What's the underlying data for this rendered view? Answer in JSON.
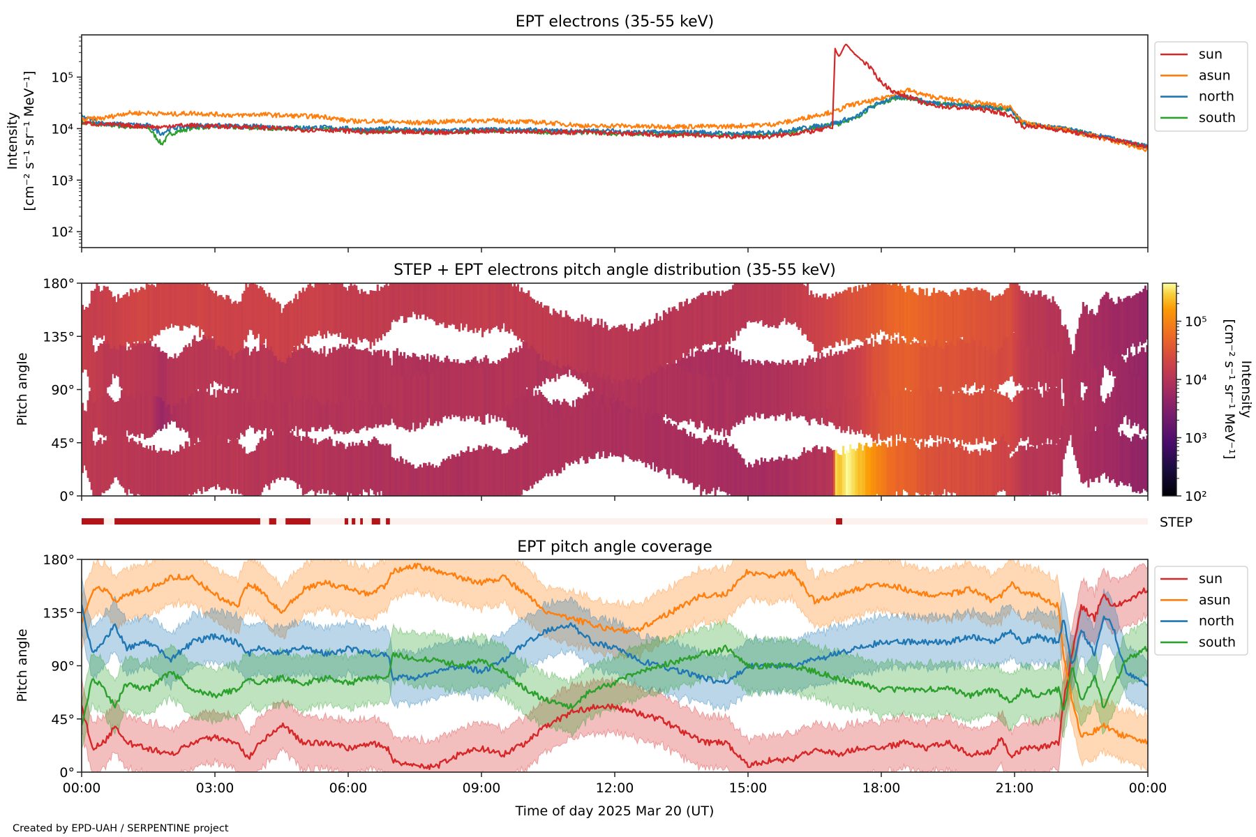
{
  "footer": "Created by EPD-UAH / SERPENTINE project",
  "xaxis": {
    "label": "Time of day 2025 Mar 20 (UT)",
    "range_hours": [
      0,
      24
    ],
    "tick_hours": [
      0,
      3,
      6,
      9,
      12,
      15,
      18,
      21,
      24
    ],
    "tick_labels": [
      "00:00",
      "03:00",
      "06:00",
      "09:00",
      "12:00",
      "15:00",
      "18:00",
      "21:00",
      "00:00"
    ]
  },
  "colors": {
    "sun": "#d62728",
    "asun": "#ff7f0e",
    "north": "#1f77b4",
    "south": "#2ca02c",
    "step_on": "#b2141a",
    "step_off": "#fdf1ed"
  },
  "chart_data": [
    {
      "id": "intensity",
      "type": "line",
      "title": "EPT electrons (35-55 keV)",
      "ylabel_line1": "Intensity",
      "ylabel_line2": "[cm⁻² s⁻¹ sr⁻¹ MeV⁻¹]",
      "yscale": "log",
      "ylim": [
        49,
        660000
      ],
      "ytick_values": [
        100,
        1000,
        10000,
        100000
      ],
      "ytick_labels": [
        "10²",
        "10³",
        "10⁴",
        "10⁵"
      ],
      "legend": {
        "placement": "outside-right-top",
        "entries": [
          "sun",
          "asun",
          "north",
          "south"
        ]
      },
      "x_hours": [
        0,
        0.5,
        1,
        1.5,
        1.8,
        2,
        2.5,
        3,
        3.5,
        4,
        4.5,
        5,
        5.5,
        6,
        6.5,
        7,
        7.5,
        8,
        8.5,
        9,
        9.5,
        10,
        10.5,
        11,
        11.5,
        12,
        12.5,
        13,
        13.5,
        14,
        14.5,
        15,
        15.5,
        16,
        16.5,
        16.9,
        16.96,
        17.05,
        17.1,
        17.2,
        17.4,
        17.7,
        18,
        18.3,
        18.6,
        19,
        19.5,
        20,
        20.5,
        20.9,
        21.2,
        21.5,
        22,
        22.5,
        23,
        23.5,
        24
      ],
      "series": [
        {
          "name": "sun",
          "values": [
            13000,
            12000,
            11500,
            11000,
            10500,
            11500,
            11500,
            11000,
            11000,
            10500,
            10000,
            9500,
            9500,
            9000,
            8500,
            8500,
            8500,
            8500,
            8500,
            9000,
            9000,
            9000,
            8500,
            8500,
            8500,
            8000,
            8000,
            7500,
            7500,
            7500,
            7000,
            7000,
            7000,
            8000,
            9000,
            10500,
            350000,
            250000,
            300000,
            440000,
            280000,
            170000,
            80000,
            50000,
            42000,
            30000,
            26000,
            25000,
            22000,
            18000,
            11000,
            11000,
            9500,
            8000,
            6500,
            5500,
            4500
          ]
        },
        {
          "name": "asun",
          "values": [
            15000,
            16000,
            20000,
            20000,
            19500,
            19000,
            20000,
            19000,
            18000,
            19000,
            18000,
            17500,
            17000,
            14000,
            14000,
            13500,
            13000,
            13500,
            14000,
            14500,
            14000,
            13500,
            13000,
            12000,
            11000,
            11500,
            11000,
            11000,
            11000,
            11000,
            11000,
            11500,
            12000,
            14000,
            18000,
            21000,
            21500,
            23000,
            24000,
            27000,
            30000,
            33000,
            38000,
            48000,
            56000,
            44000,
            37000,
            33000,
            29000,
            26000,
            13000,
            11500,
            10000,
            8000,
            6500,
            5000,
            3800
          ]
        },
        {
          "name": "north",
          "values": [
            17000,
            12500,
            12000,
            11500,
            8000,
            10000,
            11500,
            11500,
            11000,
            11000,
            10500,
            10500,
            10500,
            10000,
            9500,
            10000,
            9500,
            9000,
            9500,
            9500,
            9500,
            9500,
            9000,
            9000,
            9000,
            9000,
            8500,
            8500,
            8500,
            8500,
            8000,
            8000,
            8500,
            9500,
            11000,
            12500,
            13000,
            13000,
            14000,
            15000,
            16000,
            24000,
            33000,
            40000,
            42000,
            33000,
            30000,
            28000,
            26000,
            24000,
            13000,
            11500,
            10500,
            8500,
            7000,
            5500,
            4500
          ]
        },
        {
          "name": "south",
          "values": [
            13000,
            12000,
            11000,
            10500,
            5000,
            8000,
            10500,
            11000,
            10500,
            10500,
            10000,
            10000,
            9500,
            9500,
            9000,
            9000,
            9000,
            8500,
            9000,
            9000,
            9000,
            9000,
            8500,
            8500,
            8500,
            8000,
            8000,
            8000,
            8000,
            8000,
            7500,
            7500,
            8000,
            9000,
            10500,
            12000,
            12500,
            12500,
            13500,
            14500,
            15500,
            24000,
            32000,
            39000,
            40000,
            32000,
            29500,
            27500,
            25500,
            23500,
            12500,
            11500,
            10000,
            8500,
            6800,
            5300,
            4300
          ]
        }
      ]
    },
    {
      "id": "pad",
      "type": "heatmap",
      "title": "STEP + EPT electrons pitch angle distribution (35-55 keV)",
      "ylabel": "Pitch angle",
      "ylim": [
        0,
        180
      ],
      "ytick_values": [
        0,
        45,
        90,
        135,
        180
      ],
      "ytick_labels": [
        "0°",
        "45°",
        "90°",
        "135°",
        "180°"
      ],
      "description": "Each EPT telescope (sun, asun, north, south) fills its pitch-angle coverage band (see coverage panel) coloured by that telescope's intensity; STEP fills 0-180° only in low-angle band when active",
      "colorbar": {
        "colormap": "inferno",
        "scale": "log",
        "range": [
          100,
          450000
        ],
        "tick_values": [
          100,
          1000,
          10000,
          100000
        ],
        "tick_labels": [
          "10²",
          "10³",
          "10⁴",
          "10⁵"
        ],
        "label_line1": "Intensity",
        "label_line2": "[cm⁻² s⁻¹ sr⁻¹ MeV⁻¹]"
      }
    },
    {
      "id": "step",
      "type": "table",
      "label": "STEP",
      "description": "STEP data availability (dark segments = available)",
      "segments_hours": [
        [
          0.0,
          0.5
        ],
        [
          0.74,
          4.02
        ],
        [
          4.22,
          4.38
        ],
        [
          4.59,
          5.15
        ],
        [
          5.92,
          6.0
        ],
        [
          6.08,
          6.16
        ],
        [
          6.27,
          6.33
        ],
        [
          6.53,
          6.72
        ],
        [
          6.85,
          6.94
        ],
        [
          16.98,
          17.12
        ]
      ]
    },
    {
      "id": "coverage",
      "type": "area",
      "title": "EPT pitch angle coverage",
      "ylabel": "Pitch angle",
      "ylim": [
        0,
        180
      ],
      "ytick_values": [
        0,
        45,
        90,
        135,
        180
      ],
      "ytick_labels": [
        "0°",
        "45°",
        "90°",
        "135°",
        "180°"
      ],
      "legend": {
        "placement": "outside-right-top",
        "entries": [
          "sun",
          "asun",
          "north",
          "south"
        ]
      },
      "band_halfwidth_deg": 22,
      "x_hours": [
        0,
        0.25,
        0.5,
        0.75,
        1,
        1.5,
        2,
        2.5,
        3,
        3.5,
        3.75,
        4,
        4.5,
        5,
        5.5,
        6,
        6.5,
        6.9,
        7,
        7.5,
        8,
        8.5,
        9,
        9.5,
        10,
        10.5,
        11,
        11.5,
        12,
        12.5,
        13,
        13.5,
        14,
        14.5,
        15,
        15.5,
        16,
        16.5,
        17,
        17.5,
        18,
        18.5,
        19,
        19.5,
        20,
        20.5,
        20.7,
        20.9,
        21.2,
        21.5,
        22,
        22.1,
        22.3,
        22.5,
        22.8,
        23,
        23.2,
        23.5,
        24
      ],
      "series": [
        {
          "name": "sun",
          "values": [
            55,
            20,
            25,
            38,
            25,
            20,
            15,
            25,
            30,
            25,
            12,
            25,
            40,
            25,
            25,
            20,
            25,
            20,
            10,
            5,
            5,
            15,
            20,
            15,
            25,
            40,
            50,
            55,
            55,
            50,
            45,
            35,
            25,
            25,
            5,
            10,
            10,
            20,
            15,
            20,
            20,
            25,
            20,
            25,
            15,
            18,
            30,
            12,
            20,
            20,
            25,
            60,
            100,
            140,
            130,
            150,
            140,
            145,
            155
          ]
        },
        {
          "name": "asun",
          "values": [
            125,
            155,
            155,
            145,
            150,
            155,
            165,
            165,
            150,
            140,
            160,
            155,
            135,
            155,
            160,
            155,
            150,
            160,
            170,
            175,
            170,
            165,
            160,
            165,
            150,
            135,
            130,
            125,
            120,
            120,
            130,
            140,
            150,
            150,
            170,
            165,
            170,
            145,
            150,
            155,
            160,
            155,
            150,
            150,
            155,
            145,
            150,
            160,
            150,
            150,
            140,
            100,
            60,
            30,
            35,
            40,
            35,
            30,
            25
          ]
        },
        {
          "name": "north",
          "values": [
            140,
            100,
            110,
            125,
            105,
            110,
            95,
            110,
            115,
            110,
            100,
            105,
            100,
            105,
            100,
            105,
            100,
            100,
            80,
            80,
            85,
            90,
            85,
            95,
            110,
            120,
            125,
            110,
            105,
            95,
            90,
            85,
            80,
            75,
            90,
            90,
            90,
            95,
            100,
            105,
            110,
            110,
            110,
            110,
            115,
            110,
            115,
            120,
            110,
            115,
            110,
            130,
            90,
            120,
            100,
            130,
            125,
            85,
            75
          ]
        },
        {
          "name": "south",
          "values": [
            40,
            80,
            70,
            55,
            75,
            70,
            85,
            70,
            65,
            70,
            80,
            75,
            80,
            75,
            80,
            75,
            80,
            80,
            100,
            95,
            95,
            90,
            95,
            85,
            70,
            60,
            55,
            70,
            75,
            85,
            90,
            95,
            100,
            105,
            90,
            90,
            90,
            85,
            80,
            75,
            70,
            70,
            70,
            70,
            65,
            70,
            65,
            60,
            70,
            65,
            70,
            50,
            90,
            60,
            80,
            55,
            70,
            95,
            105
          ]
        }
      ]
    }
  ]
}
